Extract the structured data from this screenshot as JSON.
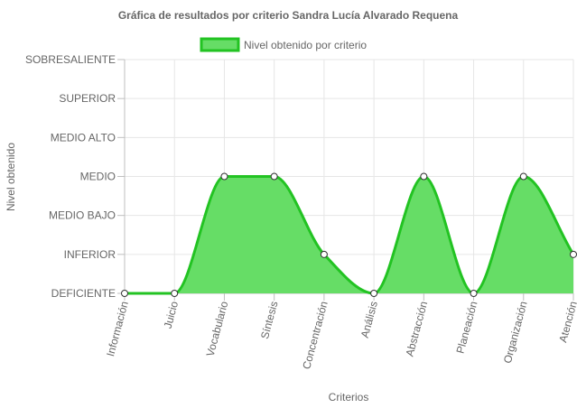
{
  "chart_data": {
    "type": "area",
    "title": "Gráfica de resultados por criterio Sandra Lucía Alvarado Requena",
    "xlabel": "Criterios",
    "ylabel": "Nivel obtenido",
    "levels": [
      "DEFICIENTE",
      "INFERIOR",
      "MEDIO BAJO",
      "MEDIO",
      "MEDIO ALTO",
      "SUPERIOR",
      "SOBRESALIENTE"
    ],
    "categories": [
      "Información",
      "Juicio",
      "Vocabulario",
      "Síntesis",
      "Concentración",
      "Análisis",
      "Abstracción",
      "Planeación",
      "Organización",
      "Atención"
    ],
    "series": [
      {
        "name": "Nivel obtenido por criterio",
        "values": [
          "DEFICIENTE",
          "DEFICIENTE",
          "MEDIO",
          "MEDIO",
          "INFERIOR",
          "DEFICIENTE",
          "MEDIO",
          "DEFICIENTE",
          "MEDIO",
          "INFERIOR"
        ],
        "fill_color": "#66dd66",
        "line_color": "#22c322"
      }
    ],
    "grid": true,
    "legend": "top"
  }
}
